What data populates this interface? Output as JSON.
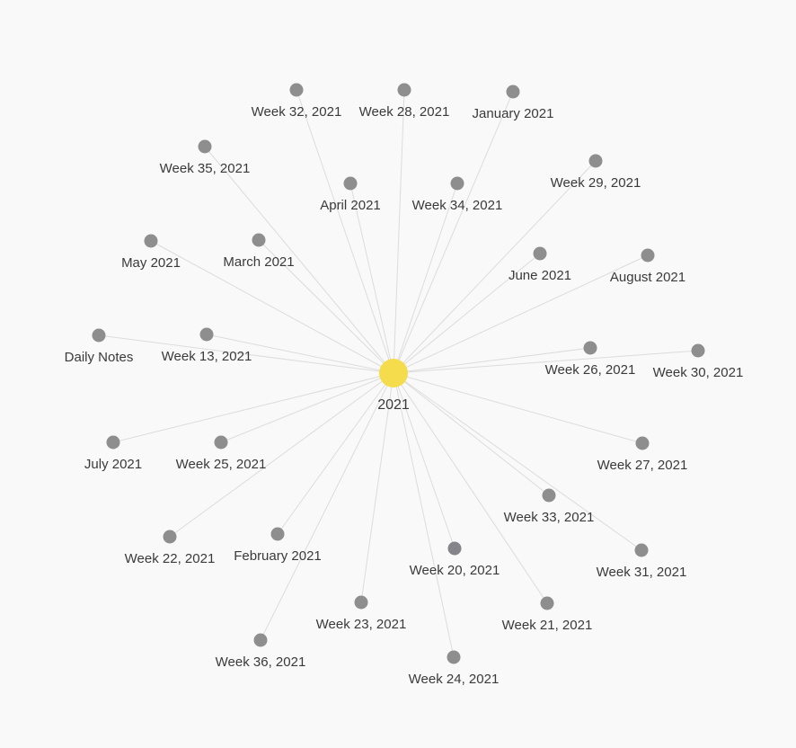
{
  "graph": {
    "center": {
      "label": "2021",
      "color": "#f5dc4d"
    },
    "node_color": "#8e8e8e",
    "highlight_node_color": "#84848a",
    "edge_color": "#dcdcdc",
    "label_color": "#3a3a3a",
    "nodes": [
      {
        "id": "week-32-2021",
        "label": "Week 32, 2021"
      },
      {
        "id": "week-28-2021",
        "label": "Week 28, 2021"
      },
      {
        "id": "january-2021",
        "label": "January 2021"
      },
      {
        "id": "week-35-2021",
        "label": "Week 35, 2021"
      },
      {
        "id": "week-29-2021",
        "label": "Week 29, 2021"
      },
      {
        "id": "april-2021",
        "label": "April 2021"
      },
      {
        "id": "week-34-2021",
        "label": "Week 34, 2021"
      },
      {
        "id": "may-2021",
        "label": "May 2021"
      },
      {
        "id": "march-2021",
        "label": "March 2021"
      },
      {
        "id": "june-2021",
        "label": "June 2021"
      },
      {
        "id": "august-2021",
        "label": "August 2021"
      },
      {
        "id": "daily-notes",
        "label": "Daily Notes"
      },
      {
        "id": "week-13-2021",
        "label": "Week 13, 2021"
      },
      {
        "id": "week-26-2021",
        "label": "Week 26, 2021"
      },
      {
        "id": "week-30-2021",
        "label": "Week 30, 2021"
      },
      {
        "id": "july-2021",
        "label": "July 2021"
      },
      {
        "id": "week-25-2021",
        "label": "Week 25, 2021"
      },
      {
        "id": "week-27-2021",
        "label": "Week 27, 2021"
      },
      {
        "id": "week-33-2021",
        "label": "Week 33, 2021"
      },
      {
        "id": "week-22-2021",
        "label": "Week 22, 2021"
      },
      {
        "id": "february-2021",
        "label": "February 2021"
      },
      {
        "id": "week-20-2021",
        "label": "Week 20, 2021",
        "highlight": true
      },
      {
        "id": "week-31-2021",
        "label": "Week 31, 2021"
      },
      {
        "id": "week-23-2021",
        "label": "Week 23, 2021"
      },
      {
        "id": "week-21-2021",
        "label": "Week 21, 2021"
      },
      {
        "id": "week-36-2021",
        "label": "Week 36, 2021"
      },
      {
        "id": "week-24-2021",
        "label": "Week 24, 2021"
      }
    ]
  }
}
